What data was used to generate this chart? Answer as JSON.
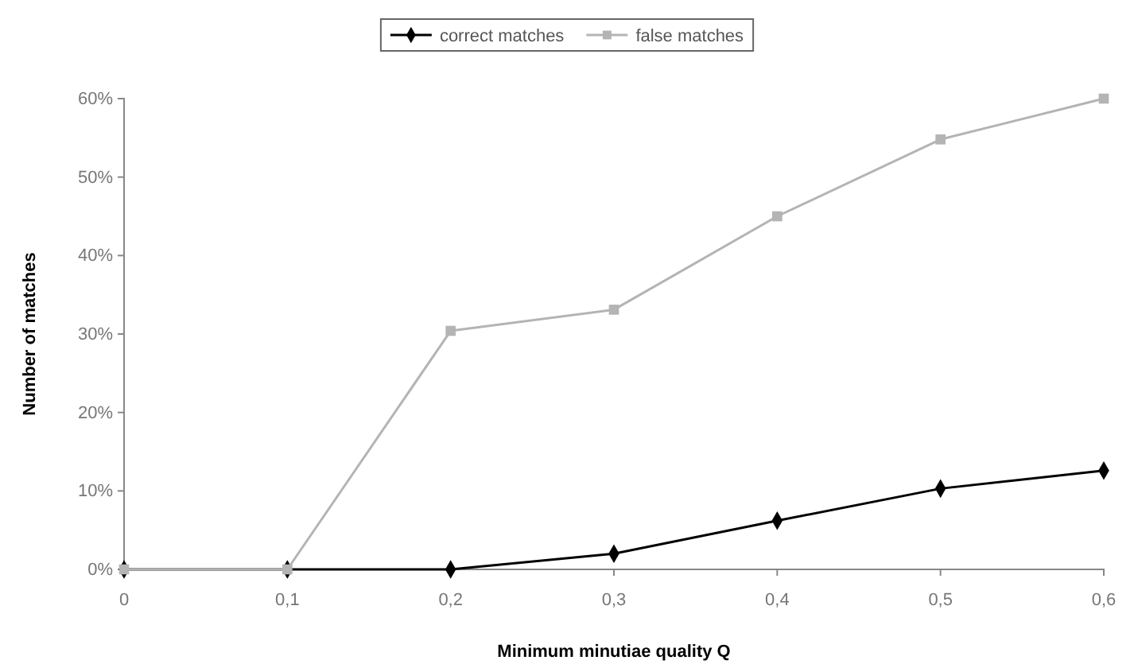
{
  "chart_data": {
    "type": "line",
    "xlabel": "Minimum minutiae quality Q",
    "ylabel": "Number of matches",
    "x": [
      0,
      0.1,
      0.2,
      0.3,
      0.4,
      0.5,
      0.6
    ],
    "xlim": [
      0,
      0.6
    ],
    "xticks": [
      {
        "value": 0,
        "label": "0"
      },
      {
        "value": 0.1,
        "label": "0,1"
      },
      {
        "value": 0.2,
        "label": "0,2"
      },
      {
        "value": 0.3,
        "label": "0,3"
      },
      {
        "value": 0.4,
        "label": "0,4"
      },
      {
        "value": 0.5,
        "label": "0,5"
      },
      {
        "value": 0.6,
        "label": "0,6"
      }
    ],
    "ylim": [
      0,
      60
    ],
    "yticks": [
      {
        "value": 0,
        "label": "0%"
      },
      {
        "value": 10,
        "label": "10%"
      },
      {
        "value": 20,
        "label": "20%"
      },
      {
        "value": 30,
        "label": "30%"
      },
      {
        "value": 40,
        "label": "40%"
      },
      {
        "value": 50,
        "label": "50%"
      },
      {
        "value": 60,
        "label": "60%"
      }
    ],
    "grid": false,
    "legend": "top",
    "series": [
      {
        "name": "correct matches",
        "color": "#000000",
        "marker": "diamond",
        "values": [
          0,
          0,
          0,
          2,
          6.2,
          10.3,
          12.6
        ]
      },
      {
        "name": "false matches",
        "color": "#b4b4b4",
        "marker": "square",
        "values": [
          0,
          0,
          30.4,
          33.1,
          45,
          54.8,
          60
        ]
      }
    ]
  }
}
